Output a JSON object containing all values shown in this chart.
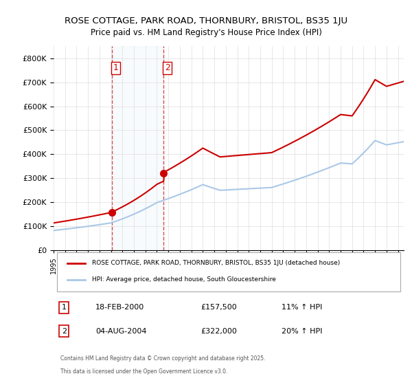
{
  "title1": "ROSE COTTAGE, PARK ROAD, THORNBURY, BRISTOL, BS35 1JU",
  "title2": "Price paid vs. HM Land Registry's House Price Index (HPI)",
  "ylabel": "",
  "sale1_date": "18-FEB-2000",
  "sale1_price": 157500,
  "sale1_hpi": "11% ↑ HPI",
  "sale2_date": "04-AUG-2004",
  "sale2_price": 322000,
  "sale2_hpi": "20% ↑ HPI",
  "legend1": "ROSE COTTAGE, PARK ROAD, THORNBURY, BRISTOL, BS35 1JU (detached house)",
  "legend2": "HPI: Average price, detached house, South Gloucestershire",
  "footer1": "Contains HM Land Registry data © Crown copyright and database right 2025.",
  "footer2": "This data is licensed under the Open Government Licence v3.0.",
  "sale_color": "#cc0000",
  "hpi_color": "#aac8e8",
  "sale_marker_color": "#cc0000",
  "vline_color": "#cc0000",
  "bg_color": "#ffffff",
  "grid_color": "#dddddd",
  "ylim_max": 850000,
  "ylim_min": 0
}
